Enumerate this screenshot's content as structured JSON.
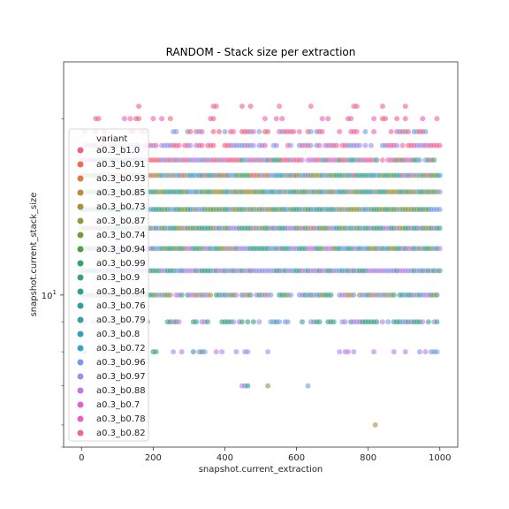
{
  "chart_data": {
    "type": "scatter",
    "title": "RANDOM - Stack size per extraction",
    "xlabel": "snapshot.current_extraction",
    "ylabel": "snapshot.current_stack_size",
    "xlim": [
      -50,
      1050
    ],
    "ylim": [
      5.5,
      25
    ],
    "yscale": "log",
    "grid": false,
    "legend_position": "upper-left",
    "x_ticks": [
      0,
      200,
      400,
      600,
      800,
      1000
    ],
    "y_ticks": [
      {
        "value": 10,
        "base": "10",
        "exp": "1"
      }
    ],
    "legend": {
      "title": "variant",
      "entries": [
        {
          "name": "a0.3_b1.0",
          "color": "#f0637c"
        },
        {
          "name": "a0.3_b0.91",
          "color": "#ec6e53"
        },
        {
          "name": "a0.3_b0.93",
          "color": "#d7803c"
        },
        {
          "name": "a0.3_b0.85",
          "color": "#c08a3b"
        },
        {
          "name": "a0.3_b0.73",
          "color": "#a8913d"
        },
        {
          "name": "a0.3_b0.87",
          "color": "#92983c"
        },
        {
          "name": "a0.3_b0.74",
          "color": "#739c3f"
        },
        {
          "name": "a0.3_b0.94",
          "color": "#4ca03d"
        },
        {
          "name": "a0.3_b0.99",
          "color": "#38a367"
        },
        {
          "name": "a0.3_b0.9",
          "color": "#37a17d"
        },
        {
          "name": "a0.3_b0.84",
          "color": "#369f8d"
        },
        {
          "name": "a0.3_b0.76",
          "color": "#369e99"
        },
        {
          "name": "a0.3_b0.79",
          "color": "#37a0a6"
        },
        {
          "name": "a0.3_b0.8",
          "color": "#38a0b6"
        },
        {
          "name": "a0.3_b0.72",
          "color": "#3ba2cd"
        },
        {
          "name": "a0.3_b0.96",
          "color": "#779ae8"
        },
        {
          "name": "a0.3_b0.97",
          "color": "#a28be8"
        },
        {
          "name": "a0.3_b0.88",
          "color": "#c278e6"
        },
        {
          "name": "a0.3_b0.7",
          "color": "#e55fd6"
        },
        {
          "name": "a0.3_b0.78",
          "color": "#ec5ec0"
        },
        {
          "name": "a0.3_b0.82",
          "color": "#f062a4"
        }
      ]
    },
    "bands": [
      {
        "y": 21,
        "x_min": 0,
        "x_max": 1000,
        "density": 0.12,
        "colors": [
          "#f0637c",
          "#f062a4"
        ]
      },
      {
        "y": 20,
        "x_min": 0,
        "x_max": 1000,
        "density": 0.25,
        "colors": [
          "#f0637c",
          "#f062a4",
          "#ec5ec0"
        ]
      },
      {
        "y": 19,
        "x_min": 0,
        "x_max": 1000,
        "density": 0.45,
        "colors": [
          "#f0637c",
          "#f062a4",
          "#779ae8"
        ]
      },
      {
        "y": 18,
        "x_min": 0,
        "x_max": 1000,
        "density": 0.75,
        "colors": [
          "#f0637c",
          "#779ae8",
          "#a28be8",
          "#f062a4"
        ]
      },
      {
        "y": 17,
        "x_min": 0,
        "x_max": 1000,
        "density": 0.95,
        "colors": [
          "#f0637c",
          "#37a17d",
          "#779ae8",
          "#c278e6",
          "#f062a4"
        ]
      },
      {
        "y": 16,
        "x_min": 0,
        "x_max": 1000,
        "density": 1.0,
        "colors": [
          "#37a17d",
          "#779ae8",
          "#92983c",
          "#f0637c",
          "#38a0b6"
        ]
      },
      {
        "y": 15,
        "x_min": 0,
        "x_max": 1000,
        "density": 1.0,
        "colors": [
          "#37a17d",
          "#92983c",
          "#779ae8",
          "#369e99",
          "#a8913d"
        ]
      },
      {
        "y": 14,
        "x_min": 0,
        "x_max": 1000,
        "density": 1.0,
        "colors": [
          "#92983c",
          "#37a17d",
          "#739c3f",
          "#369f8d",
          "#779ae8"
        ]
      },
      {
        "y": 13,
        "x_min": 0,
        "x_max": 1000,
        "density": 1.0,
        "colors": [
          "#369f8d",
          "#92983c",
          "#37a17d",
          "#779ae8",
          "#c278e6"
        ]
      },
      {
        "y": 12,
        "x_min": 0,
        "x_max": 1000,
        "density": 1.0,
        "colors": [
          "#37a17d",
          "#369f8d",
          "#779ae8",
          "#c278e6",
          "#92983c"
        ]
      },
      {
        "y": 11,
        "x_min": 0,
        "x_max": 1000,
        "density": 1.0,
        "colors": [
          "#369f8d",
          "#779ae8",
          "#c278e6",
          "#37a17d",
          "#a28be8"
        ]
      },
      {
        "y": 10,
        "x_min": 0,
        "x_max": 1000,
        "density": 0.9,
        "colors": [
          "#369f8d",
          "#37a17d",
          "#c278e6",
          "#779ae8",
          "#a8913d"
        ]
      },
      {
        "y": 9,
        "x_min": 0,
        "x_max": 1000,
        "density": 0.6,
        "colors": [
          "#c278e6",
          "#a28be8",
          "#369f8d",
          "#779ae8",
          "#37a17d"
        ]
      },
      {
        "y": 8,
        "x_min": 0,
        "x_max": 1000,
        "density": 0.3,
        "colors": [
          "#c278e6",
          "#a28be8",
          "#369f8d",
          "#779ae8"
        ]
      },
      {
        "y": 7,
        "x_min": 440,
        "x_max": 830,
        "density": 0.05,
        "colors": [
          "#369f8d",
          "#a8913d",
          "#c278e6",
          "#779ae8"
        ]
      },
      {
        "y": 6,
        "x_min": 820,
        "x_max": 830,
        "density": 0.3,
        "colors": [
          "#a8913d"
        ]
      }
    ]
  }
}
